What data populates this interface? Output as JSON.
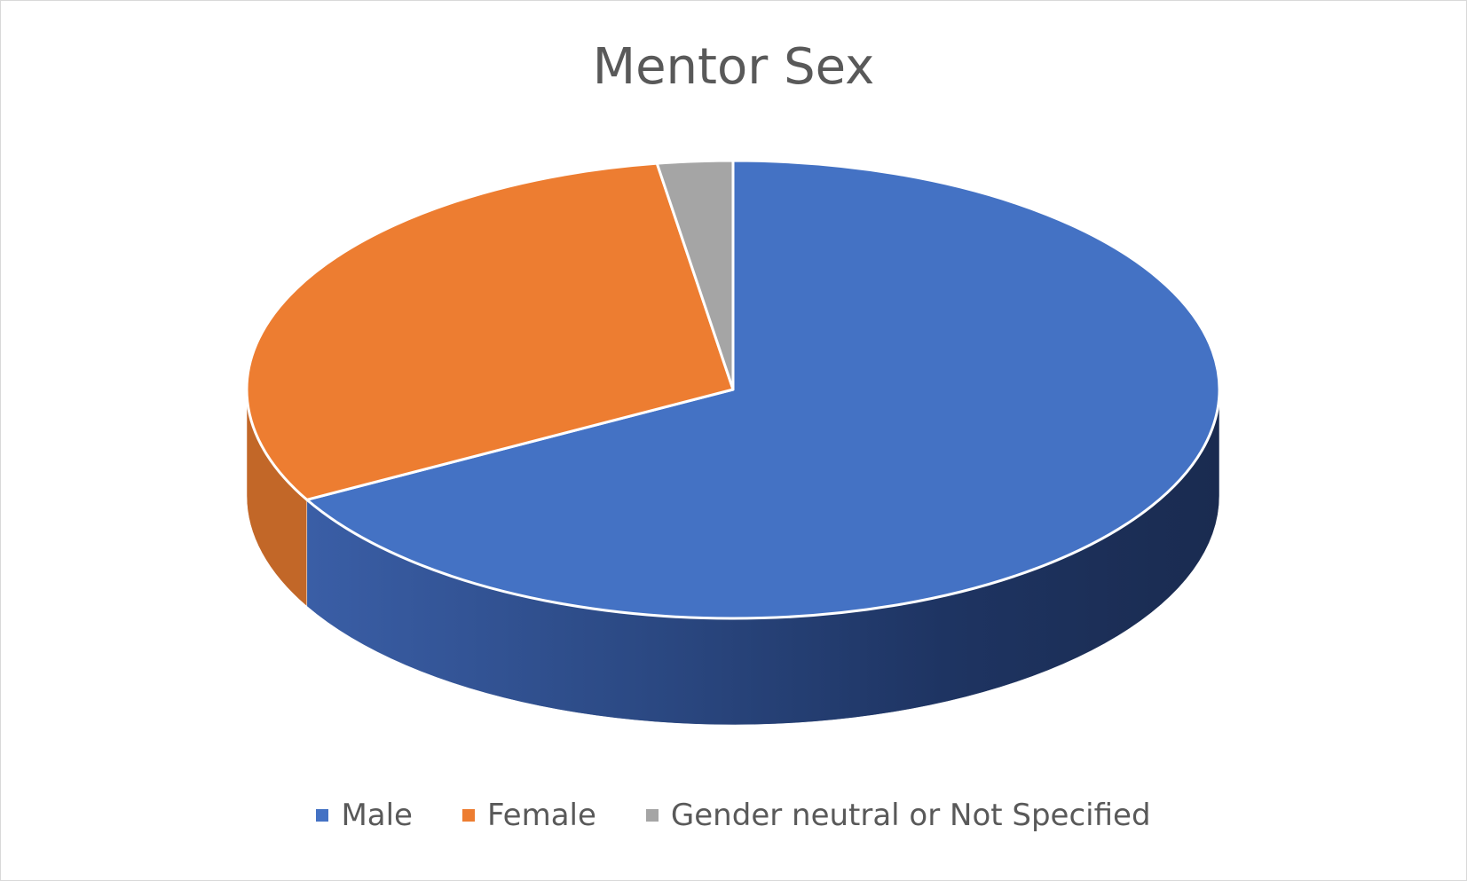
{
  "chart_data": {
    "type": "pie",
    "style": "3d",
    "title": "Mentor Sex",
    "slices": [
      {
        "label": "Male",
        "value": 67,
        "color": "#4472C4"
      },
      {
        "label": "Female",
        "value": 30.5,
        "color": "#ED7D31"
      },
      {
        "label": "Gender neutral or Not Specified",
        "value": 2.5,
        "color": "#A5A5A5"
      }
    ],
    "legend_position": "bottom"
  }
}
